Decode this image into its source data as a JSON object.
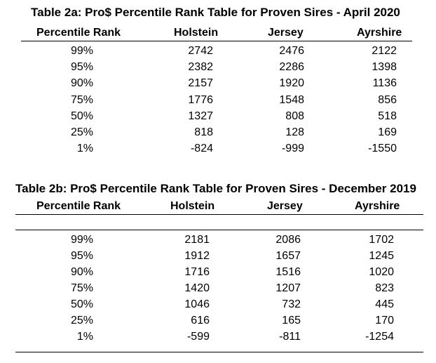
{
  "tables": [
    {
      "title": "Table 2a: Pro$ Percentile Rank Table for Proven Sires - April 2020",
      "headers": [
        "Percentile Rank",
        "Holstein",
        "Jersey",
        "Ayrshire"
      ],
      "rows": [
        [
          "99%",
          "2742",
          "2476",
          "2122"
        ],
        [
          "95%",
          "2382",
          "2286",
          "1398"
        ],
        [
          "90%",
          "2157",
          "1920",
          "1136"
        ],
        [
          "75%",
          "1776",
          "1548",
          "856"
        ],
        [
          "50%",
          "1327",
          "808",
          "518"
        ],
        [
          "25%",
          "818",
          "128",
          "169"
        ],
        [
          "1%",
          "-824",
          "-999",
          "-1550"
        ]
      ]
    },
    {
      "title": "Table 2b: Pro$ Percentile Rank Table for Proven Sires - December 2019",
      "headers": [
        "Percentile Rank",
        "Holstein",
        "Jersey",
        "Ayrshire"
      ],
      "rows": [
        [
          "99%",
          "2181",
          "2086",
          "1702"
        ],
        [
          "95%",
          "1912",
          "1657",
          "1245"
        ],
        [
          "90%",
          "1716",
          "1516",
          "1020"
        ],
        [
          "75%",
          "1420",
          "1207",
          "823"
        ],
        [
          "50%",
          "1046",
          "732",
          "445"
        ],
        [
          "25%",
          "616",
          "165",
          "170"
        ],
        [
          "1%",
          "-599",
          "-811",
          "-1254"
        ]
      ]
    }
  ]
}
